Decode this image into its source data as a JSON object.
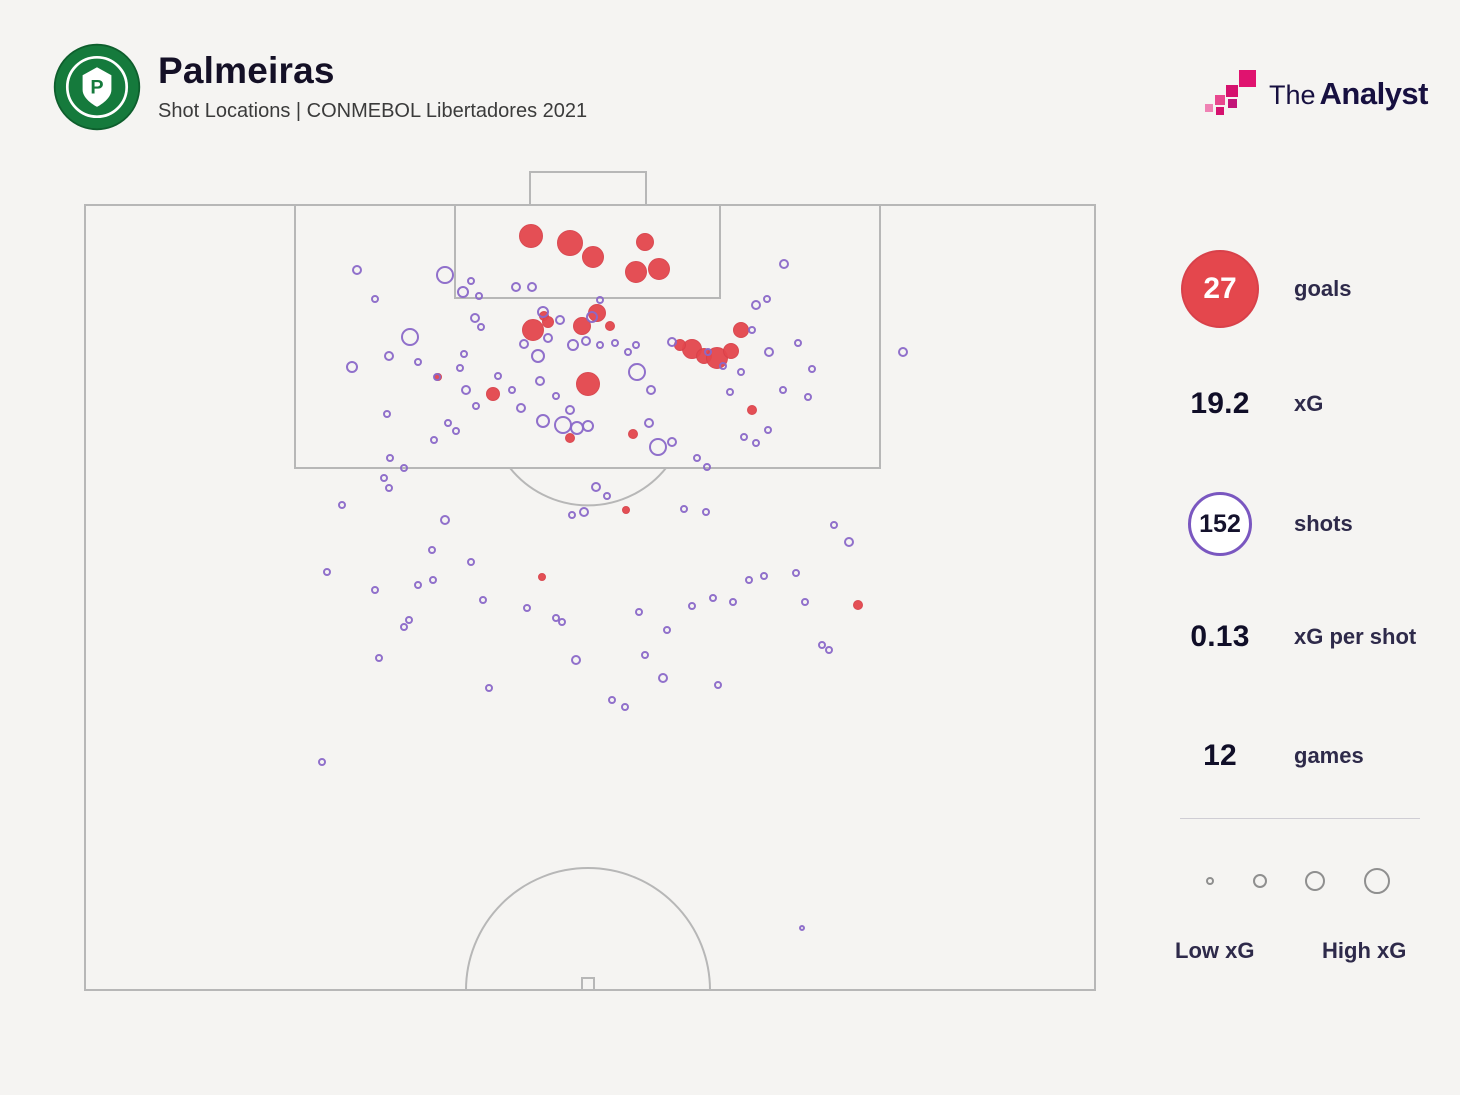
{
  "header": {
    "title": "Palmeiras",
    "subtitle": "Shot Locations | CONMEBOL Libertadores 2021",
    "club_logo": "palmeiras-crest",
    "brand_the": "The",
    "brand_analyst": "Analyst"
  },
  "stats": {
    "goals": {
      "value": "27",
      "label": "goals"
    },
    "xg": {
      "value": "19.2",
      "label": "xG"
    },
    "shots": {
      "value": "152",
      "label": "shots"
    },
    "xg_per_shot": {
      "value": "0.13",
      "label": "xG per shot"
    },
    "games": {
      "value": "12",
      "label": "games"
    }
  },
  "legend": {
    "low_label": "Low xG",
    "high_label": "High xG",
    "sizes": [
      8,
      14,
      20,
      26
    ]
  },
  "colors": {
    "goal": "#e4474d",
    "shot": "#8a68c8",
    "pitch_line": "#b7b7b7",
    "background": "#f5f4f2",
    "text": "#18142f",
    "brand_pink": "#e0136f"
  },
  "chart_data": {
    "type": "scatter",
    "title": "Palmeiras Shot Locations",
    "competition": "CONMEBOL Libertadores 2021",
    "legend_position": "right",
    "marker_size_meaning": "xG (Low xG = small, High xG = large)",
    "pitch": {
      "x_range": [
        85,
        1095
      ],
      "y_range": [
        205,
        990
      ],
      "attacking_goal": "top"
    },
    "stats": {
      "goals": 27,
      "xG": 19.2,
      "shots": 152,
      "xG_per_shot": 0.13,
      "games": 12
    },
    "series": [
      {
        "name": "goals",
        "marker": "filled",
        "color": "#e4474d",
        "points": [
          [
            531,
            236,
            12
          ],
          [
            570,
            243,
            13
          ],
          [
            593,
            257,
            11
          ],
          [
            645,
            242,
            9
          ],
          [
            636,
            272,
            11
          ],
          [
            659,
            269,
            11
          ],
          [
            544,
            316,
            5
          ],
          [
            548,
            322,
            6
          ],
          [
            533,
            330,
            11
          ],
          [
            582,
            326,
            9
          ],
          [
            597,
            313,
            9
          ],
          [
            610,
            326,
            5
          ],
          [
            741,
            330,
            8
          ],
          [
            692,
            349,
            10
          ],
          [
            704,
            356,
            8
          ],
          [
            717,
            358,
            11
          ],
          [
            731,
            351,
            8
          ],
          [
            680,
            345,
            6
          ],
          [
            588,
            384,
            12
          ],
          [
            493,
            394,
            7
          ],
          [
            438,
            377,
            4
          ],
          [
            752,
            410,
            5
          ],
          [
            633,
            434,
            5
          ],
          [
            570,
            438,
            5
          ],
          [
            626,
            510,
            4
          ],
          [
            542,
            577,
            4
          ],
          [
            858,
            605,
            5
          ]
        ]
      },
      {
        "name": "shots",
        "marker": "open",
        "color": "#8a68c8",
        "points": [
          [
            357,
            270,
            5
          ],
          [
            375,
            299,
            4
          ],
          [
            445,
            275,
            9
          ],
          [
            463,
            292,
            6
          ],
          [
            471,
            281,
            4
          ],
          [
            479,
            296,
            4
          ],
          [
            516,
            287,
            5
          ],
          [
            532,
            287,
            5
          ],
          [
            543,
            312,
            6
          ],
          [
            560,
            320,
            5
          ],
          [
            592,
            317,
            6
          ],
          [
            600,
            300,
            4
          ],
          [
            756,
            305,
            5
          ],
          [
            767,
            299,
            4
          ],
          [
            784,
            264,
            5
          ],
          [
            752,
            330,
            4
          ],
          [
            475,
            318,
            5
          ],
          [
            481,
            327,
            4
          ],
          [
            410,
            337,
            9
          ],
          [
            389,
            356,
            5
          ],
          [
            352,
            367,
            6
          ],
          [
            418,
            362,
            4
          ],
          [
            464,
            354,
            4
          ],
          [
            437,
            377,
            4
          ],
          [
            466,
            390,
            5
          ],
          [
            476,
            406,
            4
          ],
          [
            498,
            376,
            4
          ],
          [
            512,
            390,
            4
          ],
          [
            521,
            408,
            5
          ],
          [
            540,
            381,
            5
          ],
          [
            524,
            344,
            5
          ],
          [
            538,
            356,
            7
          ],
          [
            548,
            338,
            5
          ],
          [
            573,
            345,
            6
          ],
          [
            586,
            341,
            5
          ],
          [
            600,
            345,
            4
          ],
          [
            615,
            343,
            4
          ],
          [
            628,
            352,
            4
          ],
          [
            636,
            345,
            4
          ],
          [
            672,
            342,
            5
          ],
          [
            708,
            352,
            4
          ],
          [
            723,
            366,
            4
          ],
          [
            741,
            372,
            4
          ],
          [
            769,
            352,
            5
          ],
          [
            798,
            343,
            4
          ],
          [
            812,
            369,
            4
          ],
          [
            783,
            390,
            4
          ],
          [
            808,
            397,
            4
          ],
          [
            903,
            352,
            5
          ],
          [
            730,
            392,
            4
          ],
          [
            744,
            437,
            4
          ],
          [
            756,
            443,
            4
          ],
          [
            768,
            430,
            4
          ],
          [
            637,
            372,
            9
          ],
          [
            651,
            390,
            5
          ],
          [
            649,
            423,
            5
          ],
          [
            658,
            447,
            9
          ],
          [
            672,
            442,
            5
          ],
          [
            697,
            458,
            4
          ],
          [
            707,
            467,
            4
          ],
          [
            543,
            421,
            7
          ],
          [
            563,
            425,
            9
          ],
          [
            577,
            428,
            7
          ],
          [
            588,
            426,
            6
          ],
          [
            570,
            410,
            5
          ],
          [
            556,
            396,
            4
          ],
          [
            448,
            423,
            4
          ],
          [
            434,
            440,
            4
          ],
          [
            456,
            431,
            4
          ],
          [
            387,
            414,
            4
          ],
          [
            390,
            458,
            4
          ],
          [
            404,
            468,
            4
          ],
          [
            460,
            368,
            4
          ],
          [
            342,
            505,
            4
          ],
          [
            384,
            478,
            4
          ],
          [
            389,
            488,
            4
          ],
          [
            596,
            487,
            5
          ],
          [
            607,
            496,
            4
          ],
          [
            584,
            512,
            5
          ],
          [
            572,
            515,
            4
          ],
          [
            684,
            509,
            4
          ],
          [
            706,
            512,
            4
          ],
          [
            834,
            525,
            4
          ],
          [
            849,
            542,
            5
          ],
          [
            445,
            520,
            5
          ],
          [
            432,
            550,
            4
          ],
          [
            471,
            562,
            4
          ],
          [
            327,
            572,
            4
          ],
          [
            375,
            590,
            4
          ],
          [
            418,
            585,
            4
          ],
          [
            433,
            580,
            4
          ],
          [
            483,
            600,
            4
          ],
          [
            527,
            608,
            4
          ],
          [
            556,
            618,
            4
          ],
          [
            562,
            622,
            4
          ],
          [
            639,
            612,
            4
          ],
          [
            667,
            630,
            4
          ],
          [
            692,
            606,
            4
          ],
          [
            713,
            598,
            4
          ],
          [
            733,
            602,
            4
          ],
          [
            749,
            580,
            4
          ],
          [
            764,
            576,
            4
          ],
          [
            796,
            573,
            4
          ],
          [
            805,
            602,
            4
          ],
          [
            822,
            645,
            4
          ],
          [
            829,
            650,
            4
          ],
          [
            409,
            620,
            4
          ],
          [
            404,
            627,
            4
          ],
          [
            379,
            658,
            4
          ],
          [
            576,
            660,
            5
          ],
          [
            645,
            655,
            4
          ],
          [
            663,
            678,
            5
          ],
          [
            612,
            700,
            4
          ],
          [
            489,
            688,
            4
          ],
          [
            718,
            685,
            4
          ],
          [
            625,
            707,
            4
          ],
          [
            322,
            762,
            4
          ],
          [
            802,
            928,
            3
          ]
        ]
      }
    ]
  }
}
